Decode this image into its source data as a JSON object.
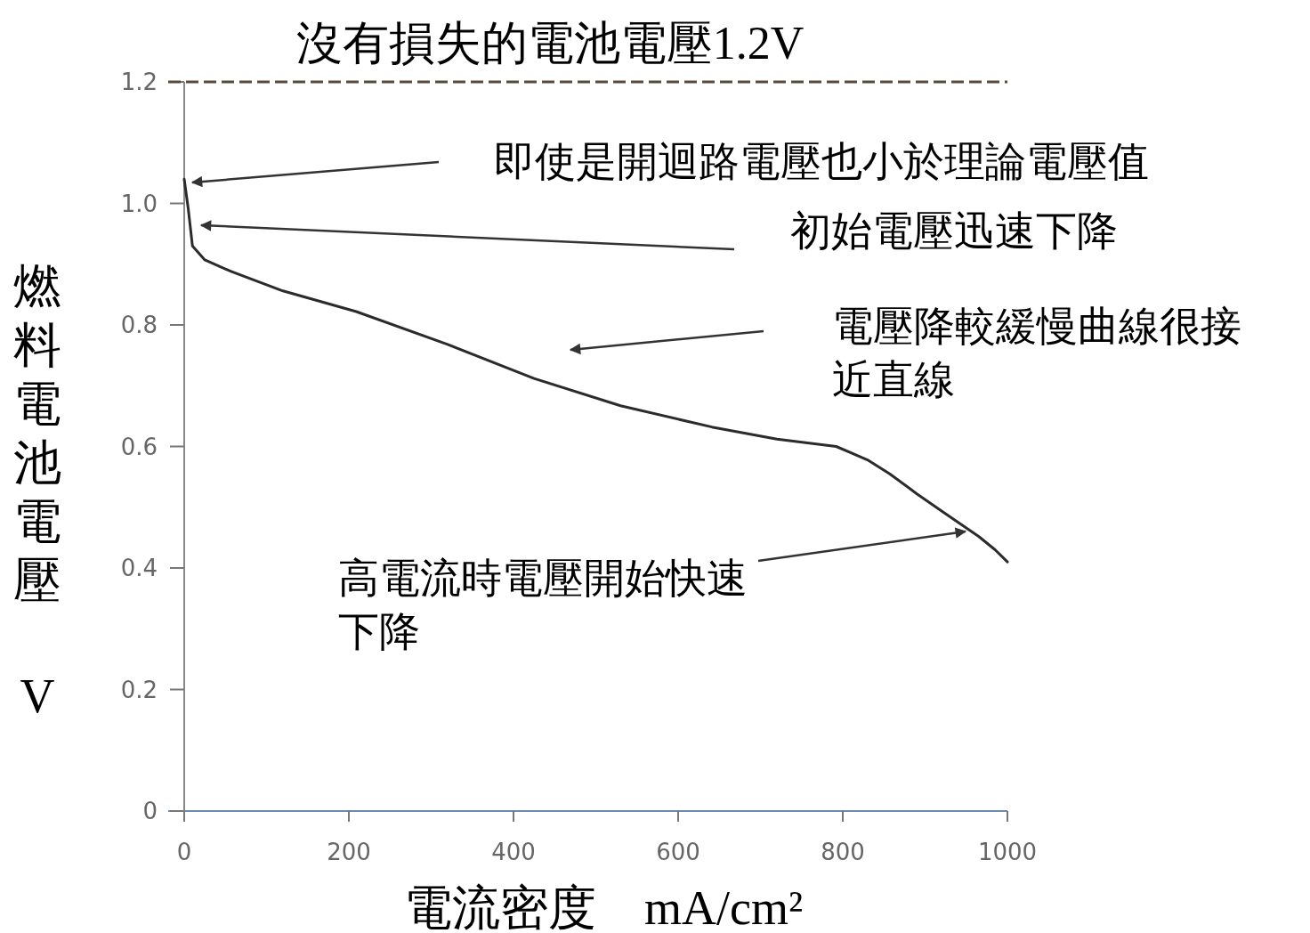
{
  "chart_data": {
    "type": "line",
    "title": "沒有損失的電池電壓1.2V",
    "xlabel": "電流密度　mA/cm²",
    "ylabel": "燃料電池電壓 V",
    "series": [
      {
        "color": "#2b2b2b",
        "x": [
          0,
          5,
          10,
          25,
          57,
          120,
          209,
          320,
          425,
          530,
          641,
          720,
          792,
          830,
          857,
          890,
          922,
          950,
          965,
          985,
          1000
        ],
        "values": [
          1.04,
          0.99,
          0.93,
          0.907,
          0.888,
          0.856,
          0.822,
          0.768,
          0.712,
          0.667,
          0.632,
          0.612,
          0.6,
          0.578,
          0.555,
          0.522,
          0.492,
          0.466,
          0.452,
          0.43,
          0.41
        ]
      }
    ],
    "xlim": [
      0,
      1000
    ],
    "ylim": [
      0,
      1.2
    ],
    "xticks": [
      0,
      200,
      400,
      600,
      800,
      1000
    ],
    "yticks": [
      0,
      0.2,
      0.4,
      0.6,
      0.8,
      {
        "value": 1,
        "label": "1.0"
      },
      1.2
    ],
    "ref_lines": [
      {
        "axis": "y",
        "value": 1.2,
        "color": "#5a4a3a",
        "line_style": "dashed"
      }
    ],
    "grid": false,
    "annotations": [
      "即使是開迴路電壓也小於理論電壓值",
      "初始電壓迅速下降",
      "電壓降較緩慢曲線很接近直線",
      {
        "text": "高電流時電壓開始快速下降",
        "x": 949,
        "y": 0.46
      }
    ]
  }
}
